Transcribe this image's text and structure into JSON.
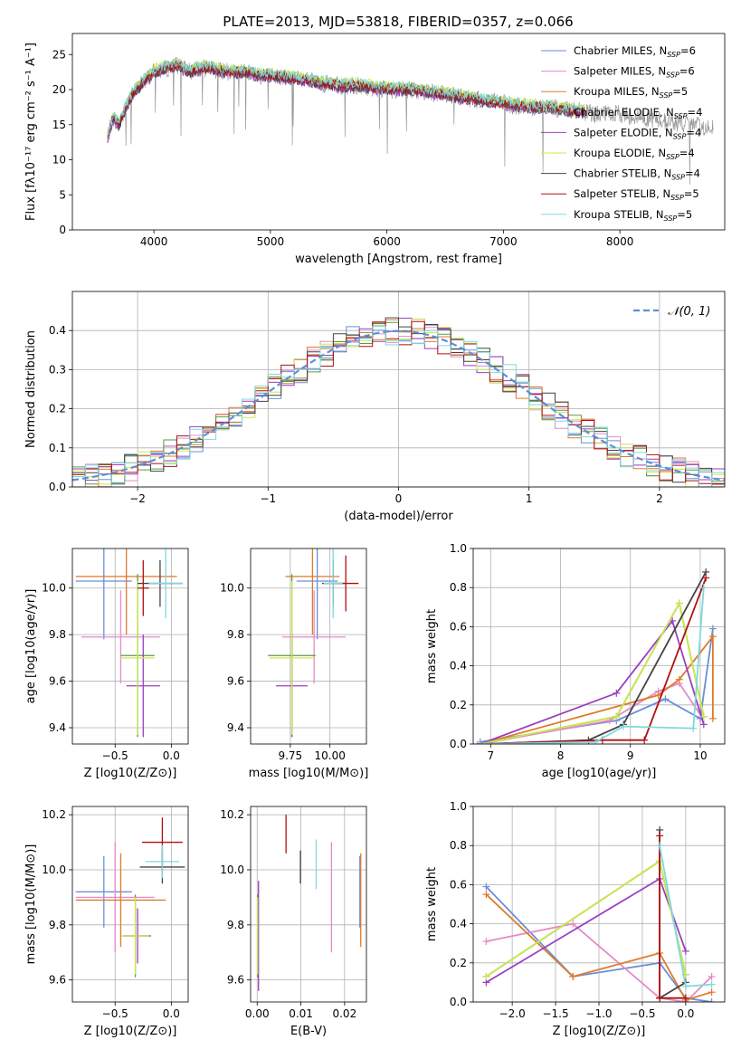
{
  "figure": {
    "title": "PLATE=2013, MJD=53818, FIBERID=0357, z=0.066"
  },
  "chart_data": [
    {
      "id": "spectrum",
      "type": "line",
      "title": "PLATE=2013, MJD=53818, FIBERID=0357, z=0.066",
      "xlabel": "wavelength [Angstrom, rest frame]",
      "ylabel": "Flux [fλ10⁻¹⁷ erg cm⁻² s⁻¹ A⁻¹]",
      "xlim": [
        3300,
        8900
      ],
      "ylim": [
        0,
        28
      ],
      "xticks": [
        "4000",
        "5000",
        "6000",
        "7000",
        "8000"
      ],
      "yticks": [
        "0",
        "5",
        "10",
        "15",
        "20",
        "25"
      ],
      "grid": false,
      "legend_position": "top-right",
      "data_series": {
        "name": "data",
        "color": "#999999",
        "x": [
          3600,
          3650,
          3700,
          3800,
          3900,
          4000,
          4100,
          4200,
          4300,
          4400,
          4500,
          4600,
          4700,
          4800,
          4900,
          5000,
          5200,
          5400,
          5600,
          5800,
          6000,
          6200,
          6400,
          6600,
          6800,
          7000,
          7200,
          7400,
          7600,
          7800,
          8000,
          8200,
          8400,
          8600,
          8800
        ],
        "y": [
          13,
          16,
          15,
          19,
          21,
          22.5,
          23,
          23.5,
          22.5,
          23,
          23,
          22.5,
          22.5,
          22.5,
          22,
          22,
          21.5,
          21,
          20.5,
          20.5,
          20,
          20,
          19.5,
          19,
          18.5,
          18,
          17.5,
          17.5,
          17,
          16.5,
          16.5,
          16,
          15.5,
          15,
          14.5
        ]
      },
      "series": [
        {
          "name": "Chabrier MILES, N_SSP=6",
          "color": "#6a8fd8"
        },
        {
          "name": "Salpeter MILES, N_SSP=6",
          "color": "#e58ac8"
        },
        {
          "name": "Kroupa MILES, N_SSP=5",
          "color": "#e07a2a"
        },
        {
          "name": "Chabrier ELODIE, N_SSP=4",
          "color": "#5a9a4a"
        },
        {
          "name": "Salpeter ELODIE, N_SSP=4",
          "color": "#9a3fc0"
        },
        {
          "name": "Kroupa ELODIE, N_SSP=4",
          "color": "#cde84a"
        },
        {
          "name": "Chabrier STELIB, N_SSP=4",
          "color": "#444444"
        },
        {
          "name": "Salpeter STELIB, N_SSP=5",
          "color": "#b01010"
        },
        {
          "name": "Kroupa STELIB, N_SSP=5",
          "color": "#7fd8e0"
        }
      ]
    },
    {
      "id": "residuals",
      "type": "histogram",
      "xlabel": "(data-model)/error",
      "ylabel": "Normed distribution",
      "xlim": [
        -2.5,
        2.5
      ],
      "ylim": [
        0,
        0.5
      ],
      "xticks": [
        "−2",
        "−1",
        "0",
        "1",
        "2"
      ],
      "yticks": [
        "0.0",
        "0.1",
        "0.2",
        "0.3",
        "0.4"
      ],
      "grid": true,
      "legend": [
        {
          "name": "𝒩(0, 1)",
          "color": "#5b8fd6"
        }
      ],
      "legend_position": "top-right"
    },
    {
      "id": "age-vs-Z",
      "type": "errorbar",
      "xlabel": "Z [log10(Z/Z⊙)]",
      "ylabel": "age  [log10(age/yr)]",
      "xlim": [
        -0.88,
        0.15
      ],
      "ylim": [
        9.33,
        10.17
      ],
      "xticks": [
        "−0.5",
        "0.0"
      ],
      "yticks": [
        "9.4",
        "9.6",
        "9.8",
        "10.0"
      ],
      "grid": true,
      "points": [
        {
          "series": 0,
          "x": -0.6,
          "xerr": 0.25,
          "y": 10.03,
          "yerr": 0.25
        },
        {
          "series": 1,
          "x": -0.45,
          "xerr": 0.35,
          "y": 9.79,
          "yerr": 0.2
        },
        {
          "series": 2,
          "x": -0.4,
          "xerr": 0.45,
          "y": 10.05,
          "yerr": 0.25
        },
        {
          "series": 3,
          "x": -0.3,
          "xerr": 0.15,
          "y": 9.71,
          "yerr": 0.35
        },
        {
          "series": 4,
          "x": -0.25,
          "xerr": 0.15,
          "y": 9.58,
          "yerr": 0.22
        },
        {
          "series": 5,
          "x": -0.3,
          "xerr": 0.15,
          "y": 9.7,
          "yerr": 0.33
        },
        {
          "series": 6,
          "x": -0.1,
          "xerr": 0.2,
          "y": 10.02,
          "yerr": 0.1
        },
        {
          "series": 7,
          "x": -0.25,
          "xerr": 0.05,
          "y": 10.0,
          "yerr": 0.12
        },
        {
          "series": 8,
          "x": -0.05,
          "xerr": 0.15,
          "y": 10.02,
          "yerr": 0.15
        }
      ]
    },
    {
      "id": "age-vs-mass",
      "type": "errorbar",
      "xlabel": "mass [log10(M/M⊙)]",
      "ylabel": "",
      "xlim": [
        9.5,
        10.23
      ],
      "ylim": [
        9.33,
        10.17
      ],
      "xticks": [
        "9.75",
        "10.00"
      ],
      "yticks": [
        "9.4",
        "9.6",
        "9.8",
        "10.0"
      ],
      "grid": true,
      "points": [
        {
          "series": 0,
          "x": 9.92,
          "xerr": 0.13,
          "y": 10.03,
          "yerr": 0.25
        },
        {
          "series": 1,
          "x": 9.9,
          "xerr": 0.2,
          "y": 9.79,
          "yerr": 0.2
        },
        {
          "series": 2,
          "x": 9.89,
          "xerr": 0.17,
          "y": 10.05,
          "yerr": 0.25
        },
        {
          "series": 3,
          "x": 9.76,
          "xerr": 0.15,
          "y": 9.71,
          "yerr": 0.35
        },
        {
          "series": 4,
          "x": 9.76,
          "xerr": 0.1,
          "y": 9.58,
          "yerr": 0.22
        },
        {
          "series": 5,
          "x": 9.76,
          "xerr": 0.14,
          "y": 9.7,
          "yerr": 0.33
        },
        {
          "series": 6,
          "x": 10.02,
          "xerr": 0.07,
          "y": 10.02,
          "yerr": 0.1
        },
        {
          "series": 7,
          "x": 10.1,
          "xerr": 0.08,
          "y": 10.02,
          "yerr": 0.12
        },
        {
          "series": 8,
          "x": 10.02,
          "xerr": 0.06,
          "y": 10.02,
          "yerr": 0.15
        }
      ]
    },
    {
      "id": "weight-vs-age",
      "type": "line",
      "xlabel": "age  [log10(age/yr)]",
      "ylabel": "mass weight",
      "xlim": [
        6.75,
        10.35
      ],
      "ylim": [
        0,
        1
      ],
      "xticks": [
        "7",
        "8",
        "9",
        "10"
      ],
      "yticks": [
        "0.0",
        "0.2",
        "0.4",
        "0.6",
        "0.8",
        "1.0"
      ],
      "grid": true,
      "series": [
        {
          "series": 0,
          "x": [
            6.85,
            8.8,
            9.5,
            10.0,
            10.18
          ],
          "y": [
            0.01,
            0.12,
            0.23,
            0.13,
            0.59
          ]
        },
        {
          "series": 1,
          "x": [
            6.85,
            8.7,
            9.4,
            9.7,
            10.02
          ],
          "y": [
            0.0,
            0.12,
            0.27,
            0.31,
            0.14
          ]
        },
        {
          "series": 2,
          "x": [
            6.85,
            9.4,
            9.7,
            10.18,
            10.18
          ],
          "y": [
            0.0,
            0.25,
            0.33,
            0.55,
            0.13
          ]
        },
        {
          "series": 3,
          "x": [
            6.85,
            8.8,
            9.7,
            10.05
          ],
          "y": [
            0.0,
            0.14,
            0.72,
            0.14
          ]
        },
        {
          "series": 4,
          "x": [
            6.85,
            8.8,
            9.6,
            10.05
          ],
          "y": [
            0.0,
            0.26,
            0.63,
            0.1
          ]
        },
        {
          "series": 5,
          "x": [
            6.85,
            8.8,
            9.7,
            10.05
          ],
          "y": [
            0.0,
            0.14,
            0.72,
            0.14
          ]
        },
        {
          "series": 6,
          "x": [
            6.85,
            8.4,
            8.9,
            10.08
          ],
          "y": [
            0.0,
            0.02,
            0.1,
            0.88
          ]
        },
        {
          "series": 7,
          "x": [
            6.85,
            8.6,
            9.2,
            10.08
          ],
          "y": [
            0.0,
            0.02,
            0.02,
            0.85
          ]
        },
        {
          "series": 8,
          "x": [
            6.85,
            8.5,
            8.9,
            9.9,
            10.05
          ],
          "y": [
            0.0,
            0.01,
            0.09,
            0.08,
            0.8
          ]
        }
      ]
    },
    {
      "id": "mass-vs-Z",
      "type": "errorbar",
      "xlabel": "Z [log10(Z/Z⊙)]",
      "ylabel": "mass [log10(M/M⊙)]",
      "xlim": [
        -0.88,
        0.15
      ],
      "ylim": [
        9.52,
        10.23
      ],
      "xticks": [
        "−0.5",
        "0.0"
      ],
      "yticks": [
        "9.6",
        "9.8",
        "10.0",
        "10.2"
      ],
      "grid": true,
      "points": [
        {
          "series": 0,
          "x": -0.6,
          "xerr": 0.25,
          "y": 9.92,
          "yerr": 0.13
        },
        {
          "series": 1,
          "x": -0.5,
          "xerr": 0.35,
          "y": 9.9,
          "yerr": 0.2
        },
        {
          "series": 2,
          "x": -0.45,
          "xerr": 0.4,
          "y": 9.89,
          "yerr": 0.17
        },
        {
          "series": 3,
          "x": -0.32,
          "xerr": 0.12,
          "y": 9.76,
          "yerr": 0.15
        },
        {
          "series": 4,
          "x": -0.3,
          "xerr": 0.12,
          "y": 9.76,
          "yerr": 0.1
        },
        {
          "series": 5,
          "x": -0.32,
          "xerr": 0.12,
          "y": 9.76,
          "yerr": 0.14
        },
        {
          "series": 6,
          "x": -0.08,
          "xerr": 0.2,
          "y": 10.01,
          "yerr": 0.06
        },
        {
          "series": 7,
          "x": -0.08,
          "xerr": 0.18,
          "y": 10.1,
          "yerr": 0.09
        },
        {
          "series": 8,
          "x": -0.08,
          "xerr": 0.15,
          "y": 10.03,
          "yerr": 0.06
        }
      ]
    },
    {
      "id": "mass-vs-EBV",
      "type": "errorbar",
      "xlabel": "E(B-V)",
      "ylabel": "",
      "xlim": [
        -0.0015,
        0.025
      ],
      "ylim": [
        9.52,
        10.23
      ],
      "xticks": [
        "0.00",
        "0.01",
        "0.02"
      ],
      "yticks": [
        "9.6",
        "9.8",
        "10.0",
        "10.2"
      ],
      "grid": true,
      "points": [
        {
          "series": 0,
          "x": 0.0235,
          "xerr": 0,
          "y": 9.92,
          "yerr": 0.13
        },
        {
          "series": 1,
          "x": 0.017,
          "xerr": 0,
          "y": 9.9,
          "yerr": 0.2
        },
        {
          "series": 2,
          "x": 0.0237,
          "xerr": 0,
          "y": 9.89,
          "yerr": 0.17
        },
        {
          "series": 3,
          "x": 0.0001,
          "xerr": 0,
          "y": 9.76,
          "yerr": 0.15
        },
        {
          "series": 4,
          "x": 0.0003,
          "xerr": 0,
          "y": 9.76,
          "yerr": 0.2
        },
        {
          "series": 5,
          "x": 0.0001,
          "xerr": 0,
          "y": 9.76,
          "yerr": 0.14
        },
        {
          "series": 6,
          "x": 0.0099,
          "xerr": 0,
          "y": 10.01,
          "yerr": 0.06
        },
        {
          "series": 7,
          "x": 0.0066,
          "xerr": 0,
          "y": 10.13,
          "yerr": 0.07
        },
        {
          "series": 8,
          "x": 0.0135,
          "xerr": 0,
          "y": 10.02,
          "yerr": 0.09
        }
      ]
    },
    {
      "id": "weight-vs-Z",
      "type": "line",
      "xlabel": "Z [log10(Z/Z⊙)]",
      "ylabel": "mass weight",
      "xlim": [
        -2.45,
        0.45
      ],
      "ylim": [
        0,
        1
      ],
      "xticks": [
        "−2.0",
        "−1.5",
        "−1.0",
        "−0.5",
        "0.0"
      ],
      "yticks": [
        "0.0",
        "0.2",
        "0.4",
        "0.6",
        "0.8",
        "1.0"
      ],
      "grid": true,
      "series": [
        {
          "series": 0,
          "x": [
            -2.3,
            -1.3,
            -0.3,
            0.0,
            0.3
          ],
          "y": [
            0.59,
            0.13,
            0.2,
            0.02,
            0.0
          ]
        },
        {
          "series": 1,
          "x": [
            -2.3,
            -1.3,
            -0.3,
            0.0,
            0.3
          ],
          "y": [
            0.31,
            0.4,
            0.02,
            0.0,
            0.13
          ]
        },
        {
          "series": 2,
          "x": [
            -2.3,
            -1.3,
            -0.3,
            0.0,
            0.3
          ],
          "y": [
            0.55,
            0.13,
            0.25,
            0.01,
            0.05
          ]
        },
        {
          "series": 3,
          "x": [
            -2.3,
            -0.3,
            0.0
          ],
          "y": [
            0.13,
            0.72,
            0.14
          ]
        },
        {
          "series": 4,
          "x": [
            -2.3,
            -0.3,
            0.0
          ],
          "y": [
            0.1,
            0.63,
            0.26
          ]
        },
        {
          "series": 5,
          "x": [
            -2.3,
            -0.3,
            0.0
          ],
          "y": [
            0.13,
            0.72,
            0.14
          ]
        },
        {
          "series": 6,
          "x": [
            -0.3,
            -0.3,
            0.0
          ],
          "y": [
            0.88,
            0.02,
            0.1
          ]
        },
        {
          "series": 7,
          "x": [
            -0.3,
            -0.3,
            0.0
          ],
          "y": [
            0.85,
            0.02,
            0.02
          ]
        },
        {
          "series": 8,
          "x": [
            -0.3,
            0.0,
            0.3
          ],
          "y": [
            0.8,
            0.08,
            0.09
          ]
        }
      ]
    }
  ]
}
